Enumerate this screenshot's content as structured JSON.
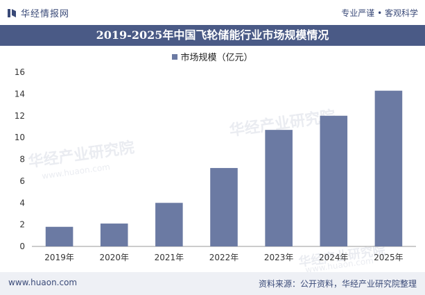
{
  "header": {
    "brand": "华经情报网",
    "slogan": "专业严谨 • 客观科学"
  },
  "footer": {
    "website": "www.huaon.com",
    "source": "资料来源：公开资料，华经产业研究院整理"
  },
  "watermark": {
    "text": "华经产业研究院",
    "url": "www.huaon.com"
  },
  "colors": {
    "bar": "#6b7aa3",
    "title_bg": "#4a5a86",
    "accent": "#3a4a78"
  },
  "chart_data": {
    "type": "bar",
    "title": "2019-2025年中国飞轮储能行业市场规模情况",
    "categories": [
      "2019年",
      "2020年",
      "2021年",
      "2022年",
      "2023年",
      "2024年",
      "2025年"
    ],
    "series": [
      {
        "name": "市场规模（亿元）",
        "values": [
          1.8,
          2.1,
          4.0,
          7.2,
          10.7,
          12.0,
          14.3
        ]
      }
    ],
    "yticks": [
      0,
      2,
      4,
      6,
      8,
      10,
      12,
      14,
      16
    ],
    "ylim": [
      0,
      16
    ],
    "grid": false,
    "legend": "top-center"
  }
}
